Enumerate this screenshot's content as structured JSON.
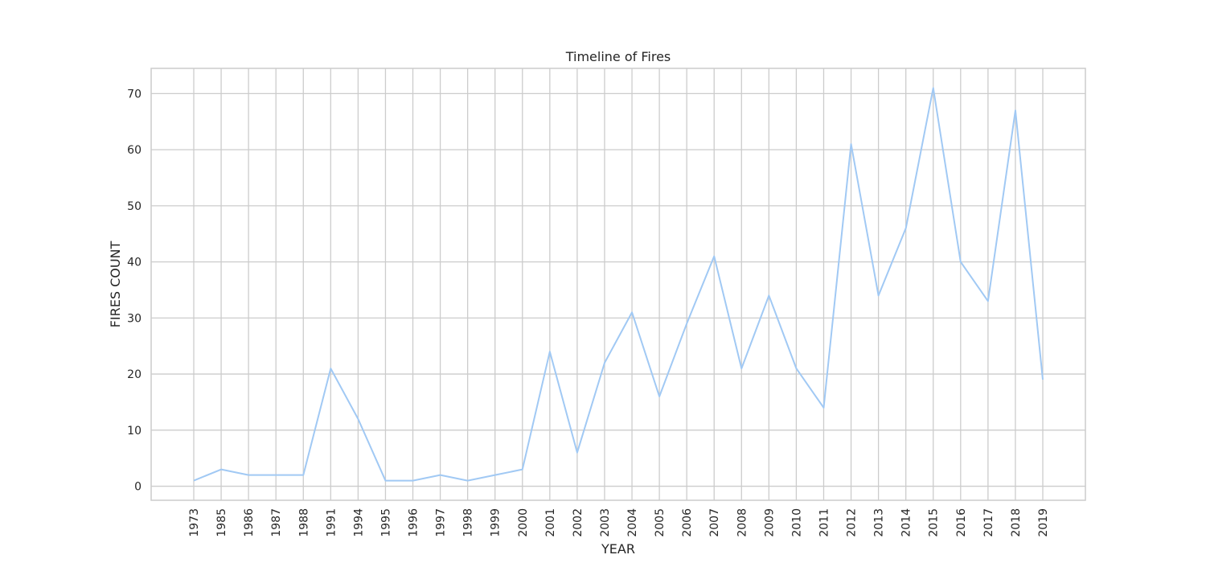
{
  "chart_data": {
    "type": "line",
    "title": "Timeline of Fires",
    "xlabel": "YEAR",
    "ylabel": "FIRES COUNT",
    "categories": [
      "1973",
      "1985",
      "1986",
      "1987",
      "1988",
      "1991",
      "1994",
      "1995",
      "1996",
      "1997",
      "1998",
      "1999",
      "2000",
      "2001",
      "2002",
      "2003",
      "2004",
      "2005",
      "2006",
      "2007",
      "2008",
      "2009",
      "2010",
      "2011",
      "2012",
      "2013",
      "2014",
      "2015",
      "2016",
      "2017",
      "2018",
      "2019"
    ],
    "values": [
      1,
      3,
      2,
      2,
      2,
      21,
      12,
      1,
      1,
      2,
      1,
      2,
      3,
      24,
      6,
      22,
      31,
      16,
      29,
      41,
      21,
      34,
      21,
      14,
      61,
      34,
      46,
      71,
      40,
      33,
      67,
      19
    ],
    "ylim": [
      -2.5,
      74.5
    ],
    "yticks": [
      0,
      10,
      20,
      30,
      40,
      50,
      60,
      70
    ],
    "grid": true,
    "colors": {
      "line": "#a1c9f4",
      "grid": "#cccccc",
      "spine": "#cccccc",
      "text": "#262626"
    }
  }
}
